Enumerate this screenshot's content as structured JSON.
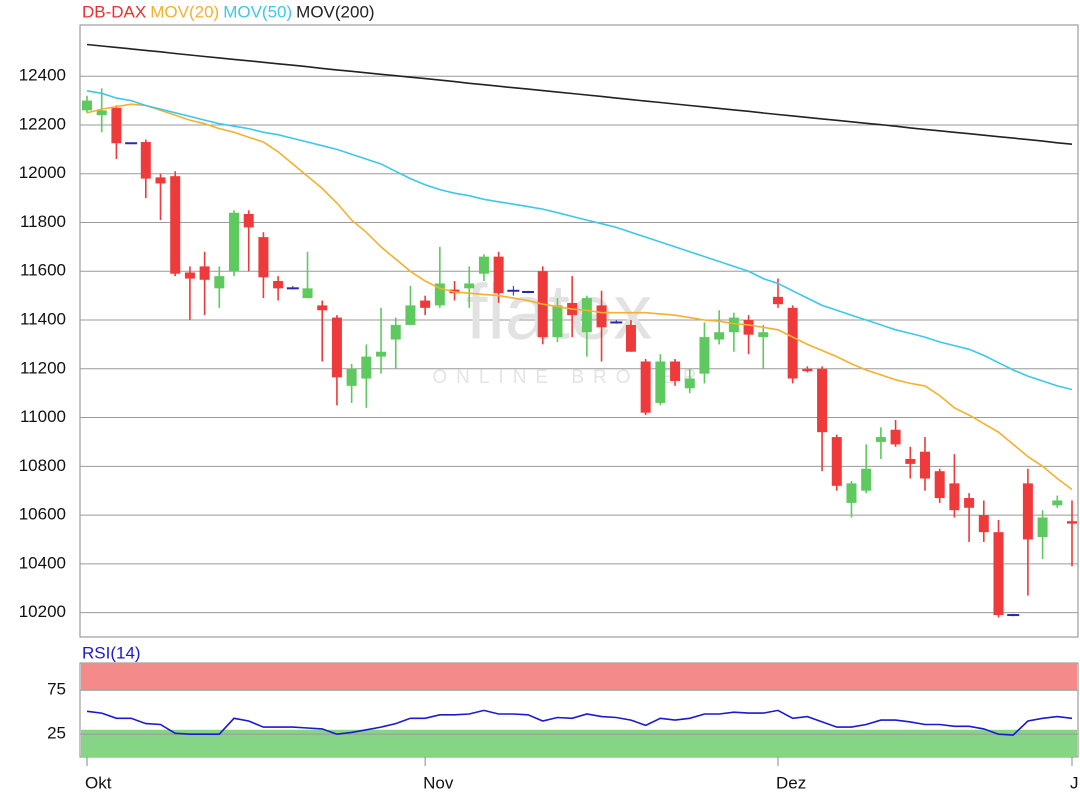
{
  "chart_data": [
    {
      "type": "candlestick",
      "name": "DB-DAX",
      "color": "#e8302e",
      "up_color": "#5ec95e",
      "down_color": "#ee3a3a",
      "doji_color": "#2a2aa8",
      "watermark": "flatex",
      "watermark_subtitle": "ONLINE BROKER",
      "categories": [
        "Okt",
        null,
        null,
        null,
        null,
        null,
        null,
        null,
        null,
        null,
        null,
        null,
        null,
        null,
        null,
        null,
        null,
        null,
        null,
        null,
        null,
        null,
        null,
        "Nov",
        null,
        null,
        null,
        null,
        null,
        null,
        null,
        null,
        null,
        null,
        null,
        null,
        null,
        null,
        null,
        null,
        null,
        null,
        null,
        null,
        null,
        null,
        null,
        "Dez",
        null,
        null,
        null,
        null,
        null,
        null,
        null,
        null,
        null,
        null,
        null,
        null,
        null,
        null,
        null,
        null,
        null,
        null,
        null,
        "J"
      ],
      "open": [
        12260,
        12240,
        12270,
        12125,
        12130,
        11985,
        11990,
        11595,
        11620,
        11530,
        11600,
        11835,
        11740,
        11560,
        11530,
        11490,
        11460,
        11410,
        11130,
        11160,
        11250,
        11320,
        11380,
        11480,
        11460,
        11525,
        11530,
        11590,
        11660,
        11520,
        11515,
        11600,
        11330,
        11470,
        11350,
        11460,
        11390,
        11380,
        11230,
        11060,
        11230,
        11120,
        11180,
        11320,
        11350,
        11400,
        11330,
        11495,
        11450,
        11200,
        11200,
        10920,
        10650,
        10700,
        10900,
        10950,
        10830,
        10860,
        10780,
        10730,
        10670,
        10600,
        10530,
        10190,
        10730,
        10510,
        10640,
        10575
      ],
      "high": [
        12320,
        12350,
        12280,
        12125,
        12140,
        12000,
        12010,
        11620,
        11680,
        11620,
        11850,
        11850,
        11760,
        11580,
        11540,
        11680,
        11480,
        11420,
        11220,
        11300,
        11450,
        11410,
        11540,
        11500,
        11700,
        11560,
        11620,
        11670,
        11680,
        11540,
        11520,
        11620,
        11490,
        11580,
        11500,
        11520,
        11400,
        11400,
        11240,
        11260,
        11240,
        11200,
        11390,
        11440,
        11430,
        11420,
        11380,
        11570,
        11460,
        11210,
        11210,
        10930,
        10740,
        10890,
        10960,
        10990,
        10880,
        10920,
        10790,
        10850,
        10690,
        10660,
        10580,
        10195,
        10790,
        10620,
        10680,
        10660
      ],
      "low": [
        12250,
        12170,
        12060,
        12125,
        11900,
        11810,
        11580,
        11400,
        11420,
        11450,
        11580,
        11600,
        11490,
        11480,
        11525,
        11490,
        11230,
        11050,
        11060,
        11040,
        11180,
        11200,
        11380,
        11420,
        11450,
        11480,
        11450,
        11560,
        11470,
        11500,
        11510,
        11300,
        11310,
        11330,
        11250,
        11230,
        11385,
        11270,
        11010,
        11050,
        11130,
        11100,
        11140,
        11300,
        11270,
        11260,
        11200,
        11450,
        11140,
        11185,
        10780,
        10700,
        10590,
        10690,
        10830,
        10880,
        10750,
        10700,
        10650,
        10590,
        10490,
        10490,
        10180,
        10185,
        10270,
        10420,
        10630,
        10390
      ],
      "close": [
        12300,
        12260,
        12125,
        12125,
        11980,
        11960,
        11590,
        11570,
        11565,
        11580,
        11840,
        11780,
        11575,
        11530,
        11530,
        11530,
        11440,
        11165,
        11200,
        11250,
        11270,
        11380,
        11460,
        11450,
        11550,
        11510,
        11550,
        11660,
        11510,
        11520,
        11515,
        11330,
        11460,
        11420,
        11490,
        11370,
        11390,
        11270,
        11020,
        11230,
        11150,
        11160,
        11330,
        11350,
        11410,
        11340,
        11350,
        11465,
        11160,
        11190,
        10940,
        10720,
        10730,
        10790,
        10920,
        10890,
        10810,
        10750,
        10670,
        10620,
        10630,
        10530,
        10190,
        10190,
        10500,
        10590,
        10660,
        10565
      ],
      "series": [
        {
          "name": "MOV(20)",
          "color": "#f5b030",
          "values": [
            12250,
            12265,
            12275,
            12285,
            12280,
            12260,
            12240,
            12220,
            12205,
            12185,
            12170,
            12150,
            12130,
            12090,
            12040,
            11990,
            11940,
            11880,
            11810,
            11760,
            11700,
            11650,
            11600,
            11560,
            11530,
            11515,
            11510,
            11505,
            11500,
            11490,
            11480,
            11465,
            11455,
            11445,
            11440,
            11430,
            11430,
            11430,
            11430,
            11425,
            11420,
            11410,
            11400,
            11395,
            11385,
            11380,
            11370,
            11360,
            11330,
            11300,
            11275,
            11250,
            11220,
            11195,
            11175,
            11155,
            11140,
            11130,
            11090,
            11040,
            11010,
            10975,
            10940,
            10890,
            10840,
            10800,
            10750,
            10705
          ]
        },
        {
          "name": "MOV(50)",
          "color": "#3cc8ec",
          "values": [
            12340,
            12330,
            12310,
            12300,
            12280,
            12265,
            12250,
            12235,
            12220,
            12205,
            12195,
            12185,
            12170,
            12160,
            12145,
            12130,
            12115,
            12100,
            12080,
            12060,
            12040,
            12010,
            11980,
            11955,
            11935,
            11920,
            11910,
            11895,
            11885,
            11875,
            11865,
            11855,
            11840,
            11825,
            11810,
            11795,
            11780,
            11760,
            11740,
            11720,
            11700,
            11680,
            11660,
            11640,
            11620,
            11600,
            11570,
            11550,
            11520,
            11490,
            11460,
            11440,
            11420,
            11400,
            11380,
            11360,
            11345,
            11330,
            11310,
            11295,
            11280,
            11255,
            11225,
            11195,
            11170,
            11150,
            11130,
            11115
          ]
        },
        {
          "name": "MOV(200)",
          "color": "#222222",
          "values": [
            12530,
            12524,
            12518,
            12512,
            12506,
            12500,
            12493,
            12487,
            12481,
            12475,
            12469,
            12463,
            12457,
            12451,
            12445,
            12439,
            12432,
            12426,
            12420,
            12414,
            12408,
            12402,
            12396,
            12390,
            12384,
            12378,
            12371,
            12365,
            12359,
            12353,
            12347,
            12341,
            12335,
            12329,
            12323,
            12317,
            12310,
            12304,
            12298,
            12292,
            12286,
            12280,
            12274,
            12268,
            12262,
            12256,
            12249,
            12243,
            12237,
            12231,
            12225,
            12219,
            12213,
            12207,
            12201,
            12195,
            12188,
            12182,
            12176,
            12170,
            12164,
            12158,
            12152,
            12146,
            12140,
            12134,
            12127,
            12121
          ]
        }
      ],
      "ylim": [
        10100,
        12610
      ],
      "yticks": [
        10200,
        10400,
        10600,
        10800,
        11000,
        11200,
        11400,
        11600,
        11800,
        12000,
        12200,
        12400
      ],
      "grid": true
    },
    {
      "type": "line",
      "title": "RSI(14)",
      "title_color": "#1a1ad0",
      "series": [
        {
          "name": "RSI(14)",
          "color": "#1a1ad0",
          "values": [
            51,
            49,
            43,
            43,
            37,
            36,
            26,
            25,
            25,
            25,
            43,
            40,
            33,
            33,
            33,
            32,
            31,
            25,
            27,
            30,
            33,
            37,
            43,
            43,
            47,
            47,
            48,
            52,
            48,
            48,
            47,
            40,
            44,
            43,
            48,
            45,
            44,
            41,
            35,
            43,
            41,
            43,
            48,
            48,
            50,
            49,
            49,
            52,
            43,
            45,
            39,
            33,
            33,
            36,
            41,
            41,
            39,
            36,
            36,
            34,
            34,
            31,
            25,
            24,
            40,
            43,
            45,
            43
          ]
        }
      ],
      "zones": [
        {
          "from": 75,
          "to": 106,
          "color": "#f58a8a"
        },
        {
          "from": -1,
          "to": 30,
          "color": "#86d486"
        }
      ],
      "ylim": [
        -1,
        106
      ],
      "yticks": [
        25,
        75
      ],
      "grid": true
    }
  ]
}
